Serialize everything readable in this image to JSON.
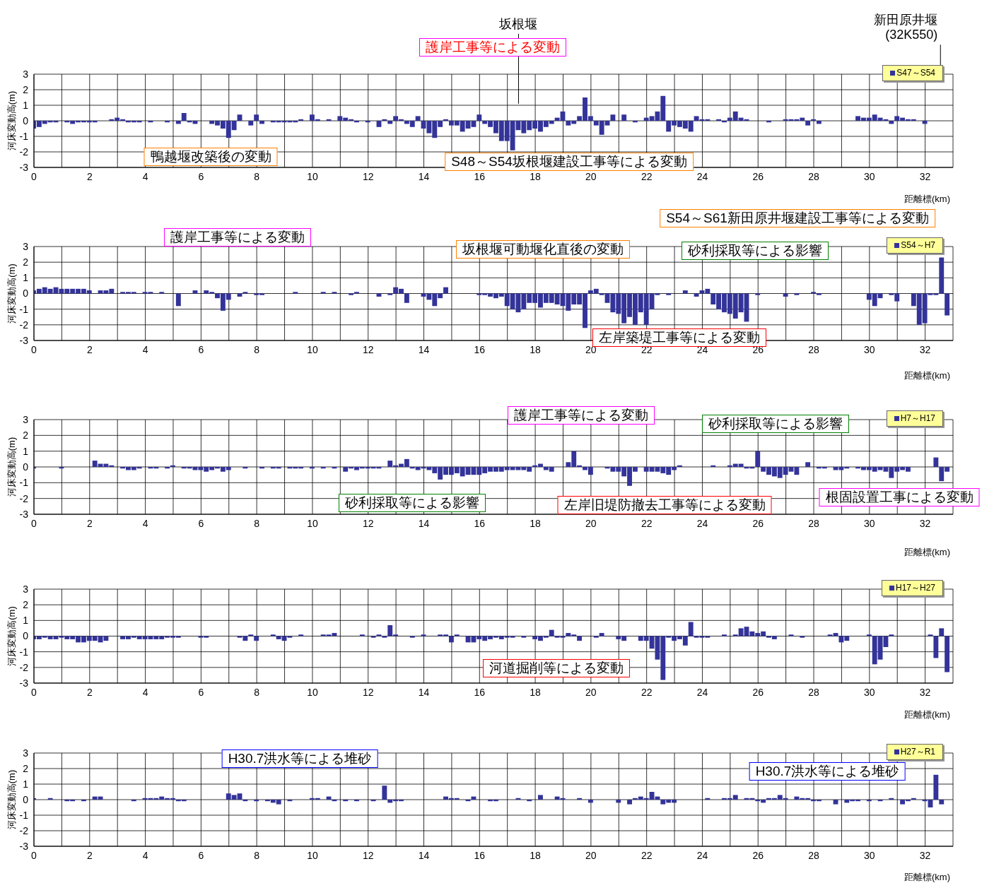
{
  "chart_data": [
    {
      "type": "bar",
      "xlabel": "距離標(km)",
      "ylabel": "河床変動高(m)",
      "legend": "top right",
      "grid": true,
      "xlim": [
        0,
        33
      ],
      "ylim": [
        -3,
        3
      ],
      "yticks": [
        -3,
        -2,
        -1,
        0,
        1,
        2,
        3
      ],
      "xticks": [
        0,
        {
          "value": 1,
          "label": null
        },
        2,
        {
          "value": 3,
          "label": null
        },
        4,
        {
          "value": 5,
          "label": null
        },
        6,
        {
          "value": 7,
          "label": null
        },
        8,
        {
          "value": 9,
          "label": null
        },
        10,
        {
          "value": 11,
          "label": null
        },
        12,
        {
          "value": 13,
          "label": null
        },
        14,
        {
          "value": 15,
          "label": null
        },
        16,
        {
          "value": 17,
          "label": null
        },
        18,
        {
          "value": 19,
          "label": null
        },
        20,
        {
          "value": 21,
          "label": null
        },
        22,
        {
          "value": 23,
          "label": null
        },
        24,
        {
          "value": 25,
          "label": null
        },
        26,
        {
          "value": 27,
          "label": null
        },
        28,
        {
          "value": 29,
          "label": null
        },
        30,
        {
          "value": 31,
          "label": null
        },
        32,
        {
          "value": 33,
          "label": null
        }
      ],
      "x": [
        0,
        0.2,
        0.4,
        0.6,
        0.8,
        1,
        1.2,
        1.4,
        1.6,
        1.8,
        2,
        2.2,
        2.4,
        2.6,
        2.8,
        3,
        3.2,
        3.4,
        3.6,
        3.8,
        4,
        4.2,
        4.4,
        4.6,
        4.8,
        5,
        5.2,
        5.4,
        5.6,
        5.8,
        6,
        6.2,
        6.4,
        6.6,
        6.8,
        7,
        7.2,
        7.4,
        7.6,
        7.8,
        8,
        8.2,
        8.4,
        8.6,
        8.8,
        9,
        9.2,
        9.4,
        9.6,
        9.8,
        10,
        10.2,
        10.4,
        10.6,
        10.8,
        11,
        11.2,
        11.4,
        11.6,
        11.8,
        12,
        12.2,
        12.4,
        12.6,
        12.8,
        13,
        13.2,
        13.4,
        13.6,
        13.8,
        14,
        14.2,
        14.4,
        14.6,
        14.8,
        15,
        15.2,
        15.4,
        15.6,
        15.8,
        16,
        16.2,
        16.4,
        16.6,
        16.8,
        17,
        17.2,
        17.4,
        17.6,
        17.8,
        18,
        18.2,
        18.4,
        18.6,
        18.8,
        19,
        19.2,
        19.4,
        19.6,
        19.8,
        20,
        20.2,
        20.4,
        20.6,
        20.8,
        21,
        21.2,
        21.4,
        21.6,
        21.8,
        22,
        22.2,
        22.4,
        22.6,
        22.8,
        23,
        23.2,
        23.4,
        23.6,
        23.8,
        24,
        24.2,
        24.4,
        24.6,
        24.8,
        25,
        25.2,
        25.4,
        25.6,
        25.8,
        26,
        26.2,
        26.4,
        26.6,
        26.8,
        27,
        27.2,
        27.4,
        27.6,
        27.8,
        28,
        28.2,
        28.4,
        28.6,
        28.8,
        29,
        29.2,
        29.4,
        29.6,
        29.8,
        30,
        30.2,
        30.4,
        30.6,
        30.8,
        31,
        31.2,
        31.4,
        31.6,
        31.8,
        32
      ],
      "series": [
        {
          "name": "S47～S54",
          "color": "#333399",
          "values": [
            -0.5,
            -0.4,
            -0.2,
            -0.1,
            -0.1,
            0,
            -0.1,
            -0.2,
            -0.1,
            -0.1,
            -0.1,
            -0.1,
            0,
            0,
            0.1,
            0.2,
            0.1,
            -0.1,
            -0.1,
            -0.1,
            0,
            -0.1,
            0,
            0,
            -0.1,
            0,
            -0.2,
            0.5,
            -0.1,
            -0.2,
            0,
            0,
            -0.2,
            -0.3,
            -0.5,
            -1.1,
            -0.6,
            0.4,
            0,
            -0.3,
            0.4,
            -0.2,
            0,
            -0.1,
            -0.1,
            -0.1,
            -0.1,
            -0.1,
            0.1,
            0,
            0.4,
            0.1,
            0,
            0.1,
            0,
            0.3,
            0.2,
            0.1,
            -0.1,
            0,
            -0.1,
            0,
            -0.4,
            0.1,
            -0.2,
            0.3,
            0.1,
            -0.2,
            -0.4,
            0.3,
            -0.5,
            -0.8,
            -1.1,
            -0.4,
            0.1,
            -0.3,
            -0.3,
            -0.7,
            -0.5,
            -0.4,
            0.4,
            -0.2,
            -0.4,
            -0.8,
            -1.3,
            -1.3,
            -1.9,
            -0.6,
            -0.8,
            -0.6,
            -0.5,
            -0.7,
            -0.4,
            -0.2,
            0.2,
            0.6,
            -0.3,
            -0.2,
            0.3,
            1.5,
            0.3,
            -0.3,
            -0.9,
            -0.3,
            0.4,
            0,
            0.4,
            0,
            -0.1,
            0,
            0.2,
            0.3,
            0.6,
            1.6,
            -0.7,
            -0.3,
            -0.4,
            -0.5,
            -0.7,
            0.3,
            0.1,
            0.1,
            0,
            0.1,
            -0.1,
            0.2,
            0.6,
            0.2,
            0.1,
            0,
            0,
            0,
            -0.1,
            0,
            0,
            0.1,
            0.1,
            0.1,
            0.2,
            -0.3,
            0.1,
            -0.2,
            0,
            0,
            0,
            0,
            0,
            0,
            0.3,
            0.2,
            0.2,
            0.4,
            0.2,
            0.1,
            -0.2,
            0.3,
            0.2,
            0.1,
            0.1,
            0,
            -0.2
          ]
        }
      ],
      "ref_lines": [
        {
          "axis": "x",
          "value": 17.4,
          "label": "坂根堰"
        },
        {
          "axis": "x",
          "value": 32.55,
          "label": "新田原井堰\n(32K550)"
        }
      ],
      "annotations": [
        "護岸工事等による変動",
        "鴨越堰改築後の変動",
        "S48～S54坂根堰建設工事等による変動"
      ]
    },
    {
      "type": "bar",
      "xlabel": "距離標(km)",
      "ylabel": "河床変動高(m)",
      "legend": "top right",
      "grid": true,
      "xlim": [
        0,
        33
      ],
      "ylim": [
        -3,
        3
      ],
      "yticks": [
        -3,
        -2,
        -1,
        0,
        1,
        2,
        3
      ],
      "xticks": [
        0,
        {
          "value": 1,
          "label": null
        },
        2,
        {
          "value": 3,
          "label": null
        },
        4,
        {
          "value": 5,
          "label": null
        },
        6,
        {
          "value": 7,
          "label": null
        },
        8,
        {
          "value": 9,
          "label": null
        },
        10,
        {
          "value": 11,
          "label": null
        },
        12,
        {
          "value": 13,
          "label": null
        },
        14,
        {
          "value": 15,
          "label": null
        },
        16,
        {
          "value": 17,
          "label": null
        },
        18,
        {
          "value": 19,
          "label": null
        },
        20,
        {
          "value": 21,
          "label": null
        },
        22,
        {
          "value": 23,
          "label": null
        },
        24,
        {
          "value": 25,
          "label": null
        },
        26,
        {
          "value": 27,
          "label": null
        },
        28,
        {
          "value": 29,
          "label": null
        },
        30,
        {
          "value": 31,
          "label": null
        },
        32,
        {
          "value": 33,
          "label": null
        }
      ],
      "x": [
        0,
        0.2,
        0.4,
        0.6,
        0.8,
        1,
        1.2,
        1.4,
        1.6,
        1.8,
        2,
        2.2,
        2.4,
        2.6,
        2.8,
        3,
        3.2,
        3.4,
        3.6,
        3.8,
        4,
        4.2,
        4.4,
        4.6,
        4.8,
        5,
        5.2,
        5.4,
        5.6,
        5.8,
        6,
        6.2,
        6.4,
        6.6,
        6.8,
        7,
        7.2,
        7.4,
        7.6,
        7.8,
        8,
        8.2,
        8.4,
        8.6,
        8.8,
        9,
        9.2,
        9.4,
        9.6,
        9.8,
        10,
        10.2,
        10.4,
        10.6,
        10.8,
        11,
        11.2,
        11.4,
        11.6,
        11.8,
        12,
        12.2,
        12.4,
        12.6,
        12.8,
        13,
        13.2,
        13.4,
        13.6,
        13.8,
        14,
        14.2,
        14.4,
        14.6,
        14.8,
        15,
        15.2,
        15.4,
        15.6,
        15.8,
        16,
        16.2,
        16.4,
        16.6,
        16.8,
        17,
        17.2,
        17.4,
        17.6,
        17.8,
        18,
        18.2,
        18.4,
        18.6,
        18.8,
        19,
        19.2,
        19.4,
        19.6,
        19.8,
        20,
        20.2,
        20.4,
        20.6,
        20.8,
        21,
        21.2,
        21.4,
        21.6,
        21.8,
        22,
        22.2,
        22.4,
        22.6,
        22.8,
        23,
        23.2,
        23.4,
        23.6,
        23.8,
        24,
        24.2,
        24.4,
        24.6,
        24.8,
        25,
        25.2,
        25.4,
        25.6,
        25.8,
        26,
        26.2,
        26.4,
        26.6,
        26.8,
        27,
        27.2,
        27.4,
        27.6,
        27.8,
        28,
        28.2,
        28.4,
        28.6,
        28.8,
        29,
        29.2,
        29.4,
        29.6,
        29.8,
        30,
        30.2,
        30.4,
        30.6,
        30.8,
        31,
        31.2,
        31.4,
        31.6,
        31.8,
        32,
        32.2,
        32.4,
        32.6,
        32.8
      ],
      "series": [
        {
          "name": "S54～H7",
          "color": "#333399",
          "values": [
            0.2,
            0.3,
            0.4,
            0.3,
            0.4,
            0.3,
            0.3,
            0.3,
            0.3,
            0.3,
            0.2,
            0,
            0.2,
            0.2,
            0.3,
            0,
            0.1,
            0.1,
            0.1,
            0,
            0.1,
            0.1,
            0,
            0.1,
            0,
            0,
            -0.8,
            0,
            0,
            0.2,
            0,
            0.2,
            0.1,
            -0.3,
            -1.1,
            -0.4,
            0,
            -0.2,
            0.1,
            0,
            -0.1,
            -0.1,
            0,
            0,
            0,
            0,
            0,
            0.1,
            0,
            0,
            0,
            0,
            0.1,
            0,
            0.1,
            0,
            0,
            -0.1,
            0.1,
            0,
            0,
            0,
            -0.2,
            0,
            -0.1,
            0.4,
            0.3,
            -0.6,
            0,
            0,
            -0.2,
            -0.4,
            -0.8,
            -0.3,
            0.4,
            0,
            0,
            0,
            0,
            0,
            -0.1,
            -0.1,
            -0.2,
            -0.3,
            -0.2,
            -0.8,
            -1,
            -1.2,
            -1,
            -0.6,
            -0.6,
            -0.9,
            -0.6,
            -0.6,
            -0.7,
            -0.8,
            -1.1,
            -0.7,
            -0.7,
            -2.2,
            0.2,
            0.3,
            -0.1,
            -0.6,
            -1.2,
            -1.3,
            -1.9,
            -1.5,
            -2,
            -1.2,
            -2,
            -1,
            -0.1,
            0,
            -0.1,
            0,
            0,
            0.2,
            0,
            -0.2,
            0.2,
            0.3,
            -0.7,
            -1,
            -1.2,
            -1.3,
            -1.6,
            -1.2,
            -1.8,
            0,
            -0.1,
            0,
            0,
            0,
            0,
            -0.2,
            0,
            -0.1,
            0,
            0,
            0.1,
            -0.1,
            0,
            0,
            0,
            0,
            0,
            0,
            0,
            0,
            -0.4,
            -0.8,
            -0.3,
            0,
            -0.1,
            -0.5,
            0,
            0,
            -0.8,
            -2,
            -1.9,
            -0.1,
            -0.1,
            2.3,
            -1.4
          ]
        }
      ],
      "annotations": [
        "S54～S61新田原井堰建設工事等による変動",
        "護岸工事等による変動",
        "坂根堰可動堰化直後の変動",
        "砂利採取等による影響",
        "左岸築堤工事等による変動"
      ]
    },
    {
      "type": "bar",
      "xlabel": "距離標(km)",
      "ylabel": "河床変動高(m)",
      "legend": "top right",
      "grid": true,
      "xlim": [
        0,
        33
      ],
      "ylim": [
        -3,
        3
      ],
      "yticks": [
        -3,
        -2,
        -1,
        0,
        1,
        2,
        3
      ],
      "xticks": [
        0,
        {
          "value": 1,
          "label": null
        },
        2,
        {
          "value": 3,
          "label": null
        },
        4,
        {
          "value": 5,
          "label": null
        },
        6,
        {
          "value": 7,
          "label": null
        },
        8,
        {
          "value": 9,
          "label": null
        },
        10,
        {
          "value": 11,
          "label": null
        },
        12,
        {
          "value": 13,
          "label": null
        },
        14,
        {
          "value": 15,
          "label": null
        },
        16,
        {
          "value": 17,
          "label": null
        },
        18,
        {
          "value": 19,
          "label": null
        },
        20,
        {
          "value": 21,
          "label": null
        },
        22,
        {
          "value": 23,
          "label": null
        },
        24,
        {
          "value": 25,
          "label": null
        },
        26,
        {
          "value": 27,
          "label": null
        },
        28,
        {
          "value": 29,
          "label": null
        },
        30,
        {
          "value": 31,
          "label": null
        },
        32,
        {
          "value": 33,
          "label": null
        }
      ],
      "x": [
        0,
        0.2,
        0.4,
        0.6,
        0.8,
        1,
        1.2,
        1.4,
        1.6,
        1.8,
        2,
        2.2,
        2.4,
        2.6,
        2.8,
        3,
        3.2,
        3.4,
        3.6,
        3.8,
        4,
        4.2,
        4.4,
        4.6,
        4.8,
        5,
        5.2,
        5.4,
        5.6,
        5.8,
        6,
        6.2,
        6.4,
        6.6,
        6.8,
        7,
        7.2,
        7.4,
        7.6,
        7.8,
        8,
        8.2,
        8.4,
        8.6,
        8.8,
        9,
        9.2,
        9.4,
        9.6,
        9.8,
        10,
        10.2,
        10.4,
        10.6,
        10.8,
        11,
        11.2,
        11.4,
        11.6,
        11.8,
        12,
        12.2,
        12.4,
        12.6,
        12.8,
        13,
        13.2,
        13.4,
        13.6,
        13.8,
        14,
        14.2,
        14.4,
        14.6,
        14.8,
        15,
        15.2,
        15.4,
        15.6,
        15.8,
        16,
        16.2,
        16.4,
        16.6,
        16.8,
        17,
        17.2,
        17.4,
        17.6,
        17.8,
        18,
        18.2,
        18.4,
        18.6,
        18.8,
        19,
        19.2,
        19.4,
        19.6,
        19.8,
        20,
        20.2,
        20.4,
        20.6,
        20.8,
        21,
        21.2,
        21.4,
        21.6,
        21.8,
        22,
        22.2,
        22.4,
        22.6,
        22.8,
        23,
        23.2,
        23.4,
        23.6,
        23.8,
        24,
        24.2,
        24.4,
        24.6,
        24.8,
        25,
        25.2,
        25.4,
        25.6,
        25.8,
        26,
        26.2,
        26.4,
        26.6,
        26.8,
        27,
        27.2,
        27.4,
        27.6,
        27.8,
        28,
        28.2,
        28.4,
        28.6,
        28.8,
        29,
        29.2,
        29.4,
        29.6,
        29.8,
        30,
        30.2,
        30.4,
        30.6,
        30.8,
        31,
        31.2,
        31.4,
        31.6,
        31.8,
        32,
        32.2,
        32.4,
        32.6,
        32.8
      ],
      "series": [
        {
          "name": "H7～H17",
          "color": "#333399",
          "values": [
            -0.1,
            0,
            0,
            0,
            0,
            -0.1,
            0,
            0,
            0,
            0,
            0,
            0.4,
            0.2,
            0.2,
            0.1,
            0,
            -0.1,
            -0.2,
            -0.2,
            -0.1,
            0,
            -0.1,
            -0.1,
            0,
            -0.1,
            0.1,
            0,
            -0.1,
            -0.1,
            -0.2,
            -0.2,
            -0.3,
            -0.2,
            -0.1,
            -0.3,
            -0.2,
            0,
            0,
            -0.1,
            0,
            0,
            -0.1,
            0,
            -0.1,
            -0.1,
            0,
            -0.1,
            -0.1,
            -0.1,
            0,
            -0.1,
            0,
            -0.1,
            0,
            -0.1,
            0,
            -0.3,
            -0.1,
            -0.2,
            -0.1,
            -0.1,
            -0.1,
            -0.1,
            0,
            0.4,
            0.1,
            0.2,
            0.5,
            -0.1,
            -0.2,
            -0.1,
            -0.2,
            -0.4,
            -0.8,
            -0.5,
            -0.5,
            -0.4,
            -0.6,
            -0.5,
            -0.5,
            -0.5,
            -0.4,
            -0.3,
            -0.3,
            -0.3,
            -0.2,
            -0.2,
            -0.2,
            -0.2,
            -0.3,
            0.1,
            0.2,
            -0.2,
            -0.3,
            0,
            0,
            0.3,
            1,
            0.1,
            -0.2,
            -0.5,
            0,
            0,
            -0.1,
            -0.3,
            -0.3,
            -0.6,
            -1.2,
            -0.3,
            0,
            -0.3,
            -0.3,
            -0.3,
            -0.4,
            -0.5,
            -0.2,
            0.1,
            0,
            0,
            0,
            0,
            0,
            0.1,
            0,
            0,
            0.1,
            0.2,
            0.2,
            -0.1,
            -0.1,
            1,
            -0.3,
            -0.5,
            -0.6,
            -0.7,
            -0.5,
            -0.3,
            -0.5,
            0,
            0.3,
            0,
            -0.1,
            -0.1,
            0,
            -0.2,
            -0.2,
            -0.1,
            0,
            -0.1,
            -0.2,
            -0.2,
            -0.3,
            -0.2,
            -0.3,
            -0.7,
            -0.3,
            -0.2,
            -0.3,
            0,
            0,
            0,
            0,
            0.6,
            -0.9,
            -0.3
          ]
        }
      ],
      "annotations": [
        "護岸工事等による変動",
        "砂利採取等による影響",
        "砂利採取等による影響",
        "左岸旧堤防撤去工事等による変動",
        "根固設置工事による変動"
      ]
    },
    {
      "type": "bar",
      "xlabel": "距離標(km)",
      "ylabel": "河床変動高(m)",
      "legend": "top right",
      "grid": true,
      "xlim": [
        0,
        33
      ],
      "ylim": [
        -3,
        3
      ],
      "yticks": [
        -3,
        -2,
        -1,
        0,
        1,
        2,
        3
      ],
      "xticks": [
        0,
        {
          "value": 1,
          "label": null
        },
        2,
        {
          "value": 3,
          "label": null
        },
        4,
        {
          "value": 5,
          "label": null
        },
        6,
        {
          "value": 7,
          "label": null
        },
        8,
        {
          "value": 9,
          "label": null
        },
        10,
        {
          "value": 11,
          "label": null
        },
        12,
        {
          "value": 13,
          "label": null
        },
        14,
        {
          "value": 15,
          "label": null
        },
        16,
        {
          "value": 17,
          "label": null
        },
        18,
        {
          "value": 19,
          "label": null
        },
        20,
        {
          "value": 21,
          "label": null
        },
        22,
        {
          "value": 23,
          "label": null
        },
        24,
        {
          "value": 25,
          "label": null
        },
        26,
        {
          "value": 27,
          "label": null
        },
        28,
        {
          "value": 29,
          "label": null
        },
        30,
        {
          "value": 31,
          "label": null
        },
        32,
        {
          "value": 33,
          "label": null
        }
      ],
      "x": [
        0,
        0.2,
        0.4,
        0.6,
        0.8,
        1,
        1.2,
        1.4,
        1.6,
        1.8,
        2,
        2.2,
        2.4,
        2.6,
        2.8,
        3,
        3.2,
        3.4,
        3.6,
        3.8,
        4,
        4.2,
        4.4,
        4.6,
        4.8,
        5,
        5.2,
        5.4,
        5.6,
        5.8,
        6,
        6.2,
        6.4,
        6.6,
        6.8,
        7,
        7.2,
        7.4,
        7.6,
        7.8,
        8,
        8.2,
        8.4,
        8.6,
        8.8,
        9,
        9.2,
        9.4,
        9.6,
        9.8,
        10,
        10.2,
        10.4,
        10.6,
        10.8,
        11,
        11.2,
        11.4,
        11.6,
        11.8,
        12,
        12.2,
        12.4,
        12.6,
        12.8,
        13,
        13.2,
        13.4,
        13.6,
        13.8,
        14,
        14.2,
        14.4,
        14.6,
        14.8,
        15,
        15.2,
        15.4,
        15.6,
        15.8,
        16,
        16.2,
        16.4,
        16.6,
        16.8,
        17,
        17.2,
        17.4,
        17.6,
        17.8,
        18,
        18.2,
        18.4,
        18.6,
        18.8,
        19,
        19.2,
        19.4,
        19.6,
        19.8,
        20,
        20.2,
        20.4,
        20.6,
        20.8,
        21,
        21.2,
        21.4,
        21.6,
        21.8,
        22,
        22.2,
        22.4,
        22.6,
        22.8,
        23,
        23.2,
        23.4,
        23.6,
        23.8,
        24,
        24.2,
        24.4,
        24.6,
        24.8,
        25,
        25.2,
        25.4,
        25.6,
        25.8,
        26,
        26.2,
        26.4,
        26.6,
        26.8,
        27,
        27.2,
        27.4,
        27.6,
        27.8,
        28,
        28.2,
        28.4,
        28.6,
        28.8,
        29,
        29.2,
        29.4,
        29.6,
        29.8,
        30,
        30.2,
        30.4,
        30.6,
        30.8,
        31,
        31.2,
        31.4,
        31.6,
        31.8,
        32,
        32.2,
        32.4,
        32.6,
        32.8
      ],
      "series": [
        {
          "name": "H17～H27",
          "color": "#333399",
          "values": [
            -0.2,
            -0.2,
            -0.1,
            -0.2,
            -0.2,
            -0.1,
            -0.2,
            -0.2,
            -0.4,
            -0.4,
            -0.3,
            -0.3,
            -0.4,
            -0.3,
            0,
            0,
            -0.2,
            -0.2,
            -0.1,
            -0.2,
            -0.2,
            -0.2,
            -0.2,
            -0.2,
            -0.1,
            -0.1,
            -0.1,
            0,
            0,
            0,
            -0.1,
            -0.1,
            0,
            0,
            0,
            0,
            0,
            -0.1,
            -0.3,
            0.1,
            -0.3,
            0,
            0,
            0.1,
            -0.2,
            -0.3,
            -0.1,
            0,
            0.1,
            0,
            0,
            0,
            0.1,
            0.1,
            0.2,
            0,
            0,
            0,
            0,
            0.1,
            0,
            -0.1,
            0.1,
            -0.1,
            0.7,
            0.1,
            0,
            0,
            -0.1,
            0,
            0.1,
            0,
            0,
            0.1,
            0.1,
            -0.4,
            0.1,
            0,
            -0.4,
            -0.4,
            -0.2,
            -0.3,
            -0.2,
            -0.1,
            -0.2,
            -0.1,
            -0.1,
            0,
            -0.1,
            0,
            -0.2,
            -0.3,
            -0.1,
            0.4,
            -0.1,
            -0.1,
            0.2,
            0.1,
            -0.3,
            0,
            0,
            -0.1,
            0.2,
            0,
            0,
            -0.2,
            -0.3,
            0,
            0,
            -0.3,
            -0.3,
            -0.8,
            -1.5,
            -2.8,
            -0.1,
            -0.3,
            -0.2,
            -0.6,
            0.9,
            -0.1,
            -0.1,
            -0.1,
            0,
            0,
            0.1,
            0,
            0.1,
            0.5,
            0.6,
            0.3,
            0.2,
            0.3,
            -0.1,
            -0.2,
            0,
            0,
            0.1,
            0,
            -0.1,
            0,
            0,
            0,
            0,
            0.1,
            0.2,
            -0.4,
            -0.3,
            0,
            0,
            0,
            0.1,
            -1.8,
            -1.5,
            -0.7,
            0.1,
            0,
            0,
            0,
            0,
            0,
            0,
            0.1,
            -1.4,
            0.5,
            -2.3
          ]
        }
      ],
      "annotations": [
        "河道掘削等による変動"
      ]
    },
    {
      "type": "bar",
      "xlabel": "距離標(km)",
      "ylabel": "河床変動高(m)",
      "legend": "top right",
      "grid": true,
      "xlim": [
        0,
        33
      ],
      "ylim": [
        -3,
        3
      ],
      "yticks": [
        -3,
        -2,
        -1,
        0,
        1,
        2,
        3
      ],
      "xticks": [
        0,
        {
          "value": 1,
          "label": null
        },
        2,
        {
          "value": 3,
          "label": null
        },
        4,
        {
          "value": 5,
          "label": null
        },
        6,
        {
          "value": 7,
          "label": null
        },
        8,
        {
          "value": 9,
          "label": null
        },
        10,
        {
          "value": 11,
          "label": null
        },
        12,
        {
          "value": 13,
          "label": null
        },
        14,
        {
          "value": 15,
          "label": null
        },
        16,
        {
          "value": 17,
          "label": null
        },
        18,
        {
          "value": 19,
          "label": null
        },
        20,
        {
          "value": 21,
          "label": null
        },
        22,
        {
          "value": 23,
          "label": null
        },
        24,
        {
          "value": 25,
          "label": null
        },
        26,
        {
          "value": 27,
          "label": null
        },
        28,
        {
          "value": 29,
          "label": null
        },
        30,
        {
          "value": 31,
          "label": null
        },
        32,
        {
          "value": 33,
          "label": null
        }
      ],
      "x": [
        0,
        0.2,
        0.4,
        0.6,
        0.8,
        1,
        1.2,
        1.4,
        1.6,
        1.8,
        2,
        2.2,
        2.4,
        2.6,
        2.8,
        3,
        3.2,
        3.4,
        3.6,
        3.8,
        4,
        4.2,
        4.4,
        4.6,
        4.8,
        5,
        5.2,
        5.4,
        5.6,
        5.8,
        6,
        6.2,
        6.4,
        6.6,
        6.8,
        7,
        7.2,
        7.4,
        7.6,
        7.8,
        8,
        8.2,
        8.4,
        8.6,
        8.8,
        9,
        9.2,
        9.4,
        9.6,
        9.8,
        10,
        10.2,
        10.4,
        10.6,
        10.8,
        11,
        11.2,
        11.4,
        11.6,
        11.8,
        12,
        12.2,
        12.4,
        12.6,
        12.8,
        13,
        13.2,
        13.4,
        13.6,
        13.8,
        14,
        14.2,
        14.4,
        14.6,
        14.8,
        15,
        15.2,
        15.4,
        15.6,
        15.8,
        16,
        16.2,
        16.4,
        16.6,
        16.8,
        17,
        17.2,
        17.4,
        17.6,
        17.8,
        18,
        18.2,
        18.4,
        18.6,
        18.8,
        19,
        19.2,
        19.4,
        19.6,
        19.8,
        20,
        20.2,
        20.4,
        20.6,
        20.8,
        21,
        21.2,
        21.4,
        21.6,
        21.8,
        22,
        22.2,
        22.4,
        22.6,
        22.8,
        23,
        23.2,
        23.4,
        23.6,
        23.8,
        24,
        24.2,
        24.4,
        24.6,
        24.8,
        25,
        25.2,
        25.4,
        25.6,
        25.8,
        26,
        26.2,
        26.4,
        26.6,
        26.8,
        27,
        27.2,
        27.4,
        27.6,
        27.8,
        28,
        28.2,
        28.4,
        28.6,
        28.8,
        29,
        29.2,
        29.4,
        29.6,
        29.8,
        30,
        30.2,
        30.4,
        30.6,
        30.8,
        31,
        31.2,
        31.4,
        31.6,
        31.8,
        32,
        32.2,
        32.4,
        32.6
      ],
      "series": [
        {
          "name": "H27～R1",
          "color": "#333399",
          "values": [
            0.1,
            0,
            0,
            0.1,
            0,
            0,
            -0.1,
            -0.1,
            0,
            -0.1,
            0,
            0.2,
            0.2,
            0,
            0,
            0,
            0,
            0,
            -0.1,
            0,
            0.1,
            0.1,
            0.1,
            0.2,
            0.1,
            0.1,
            -0.1,
            -0.1,
            0,
            0,
            0,
            0,
            0,
            0,
            0,
            0.4,
            0.3,
            0.4,
            -0.1,
            0,
            -0.1,
            0,
            -0.1,
            -0.2,
            -0.3,
            0,
            -0.1,
            0,
            0,
            0,
            0.1,
            0.1,
            0,
            0.2,
            -0.1,
            0,
            -0.1,
            0,
            -0.1,
            0,
            0,
            -0.1,
            0,
            0.9,
            -0.2,
            -0.1,
            -0.1,
            0,
            0,
            0,
            0,
            0,
            0,
            0,
            0.2,
            0.1,
            0.1,
            0,
            -0.1,
            0.2,
            0,
            0,
            -0.1,
            -0.1,
            0,
            0,
            0,
            0.1,
            0,
            -0.1,
            0,
            0.3,
            0,
            0,
            0.2,
            0.1,
            0,
            0,
            0.1,
            0,
            -0.2,
            0,
            0,
            0,
            0,
            -0.2,
            0,
            -0.3,
            0.1,
            0.2,
            0.1,
            0.5,
            0.2,
            -0.3,
            -0.2,
            -0.2,
            0,
            0,
            0,
            0,
            0,
            0.1,
            0,
            0,
            0.1,
            0.1,
            0.3,
            0,
            0.1,
            0.1,
            -0.1,
            -0.2,
            0.1,
            0.1,
            0.3,
            0.1,
            0,
            0.2,
            0.1,
            0.1,
            -0.1,
            -0.1,
            0,
            0,
            -0.3,
            0,
            -0.2,
            -0.1,
            -0.1,
            0,
            -0.1,
            0,
            -0.1,
            0,
            0.1,
            0,
            -0.3,
            -0.1,
            0.1,
            0,
            -0.1,
            -0.5,
            1.6,
            -0.3
          ]
        }
      ],
      "annotations": [
        "H30.7洪水等による堆砂",
        "H30.7洪水等による堆砂"
      ]
    }
  ]
}
